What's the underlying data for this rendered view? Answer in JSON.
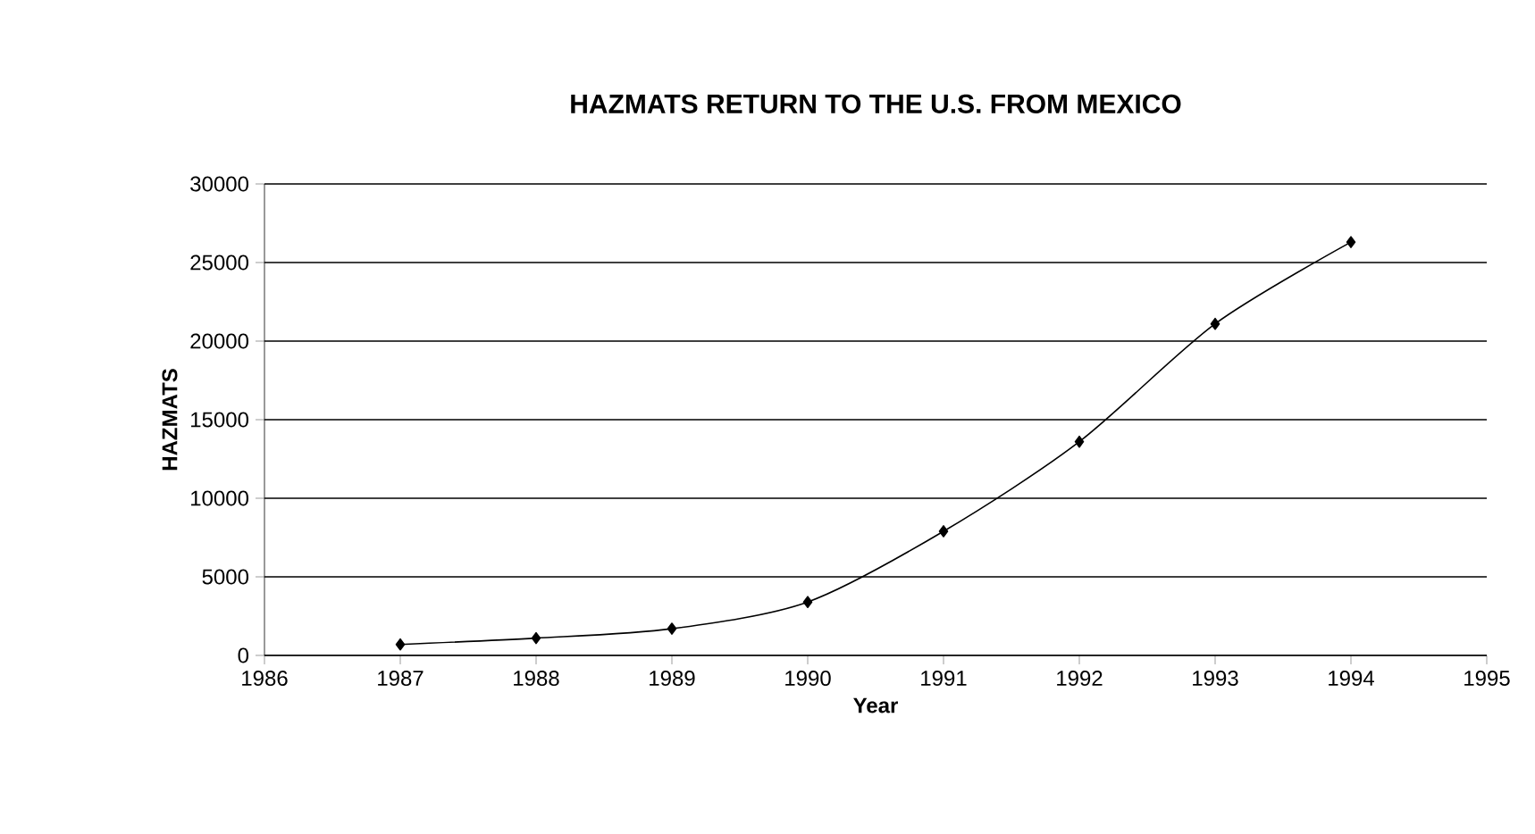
{
  "chart_data": {
    "type": "line",
    "title": "HAZMATS RETURN TO THE U.S. FROM MEXICO",
    "xlabel": "Year",
    "ylabel": "HAZMATS",
    "x": [
      1987,
      1988,
      1989,
      1990,
      1991,
      1992,
      1993,
      1994
    ],
    "series": [
      {
        "color": "#000000",
        "values": [
          700,
          1100,
          1700,
          3400,
          7900,
          13600,
          21100,
          26300
        ]
      }
    ],
    "xlim": [
      1986,
      1995
    ],
    "xticks": [
      1986,
      1987,
      1988,
      1989,
      1990,
      1991,
      1992,
      1993,
      1994,
      1995
    ],
    "ylim": [
      0,
      30000
    ],
    "yticks": [
      0,
      5000,
      10000,
      15000,
      20000,
      25000,
      30000
    ],
    "grid": "y",
    "marker": "diamond",
    "line_style": "solid"
  }
}
